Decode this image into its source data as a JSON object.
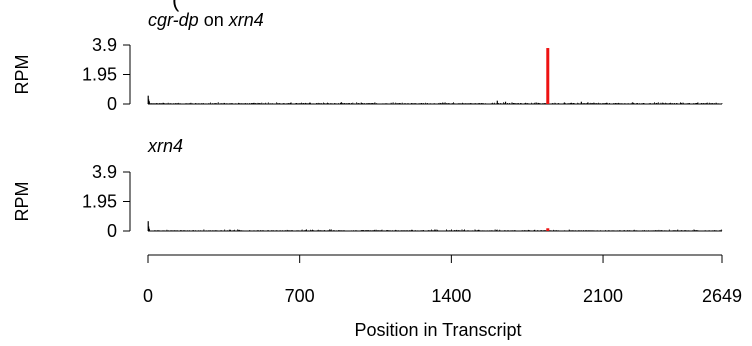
{
  "chart_data": {
    "type": "bar",
    "x_axis": {
      "label": "Position in Transcript",
      "range": [
        0,
        2649
      ],
      "ticks": [
        0,
        700,
        1400,
        2100,
        2649
      ],
      "tick_labels": [
        "0",
        "700",
        "1400",
        "2100",
        "2649"
      ]
    },
    "panels": [
      {
        "title_parts": [
          {
            "text": "cgr-dp",
            "italic": true
          },
          {
            "text": " on ",
            "italic": false
          },
          {
            "text": "xrn4",
            "italic": true
          }
        ],
        "ylabel": "RPM",
        "ylim": [
          0,
          3.9
        ],
        "yticks": [
          0,
          1.95,
          3.9
        ],
        "ytick_labels": [
          "0",
          "1.95",
          "3.9"
        ],
        "highlight": {
          "position": 1845,
          "value": 3.7,
          "color": "#ee1111"
        },
        "noise_peaks": [
          {
            "position": 1,
            "value": 0.55
          },
          {
            "position": 3,
            "value": 0.3
          },
          {
            "position": 6,
            "value": 0.18
          },
          {
            "position": 1612,
            "value": 0.22
          },
          {
            "position": 1650,
            "value": 0.15
          },
          {
            "position": 2000,
            "value": 0.15
          }
        ],
        "noise_level": 0.07
      },
      {
        "title_parts": [
          {
            "text": "xrn4",
            "italic": true
          }
        ],
        "ylabel": "RPM",
        "ylim": [
          0,
          3.9
        ],
        "yticks": [
          0,
          1.95,
          3.9
        ],
        "ytick_labels": [
          "0",
          "1.95",
          "3.9"
        ],
        "highlight": {
          "position": 1845,
          "value": 0.18,
          "color": "#ee1111"
        },
        "noise_peaks": [
          {
            "position": 1,
            "value": 0.65
          },
          {
            "position": 3,
            "value": 0.3
          },
          {
            "position": 6,
            "value": 0.15
          }
        ],
        "noise_level": 0.06
      }
    ],
    "line_color": "#000000",
    "grid": false
  },
  "top_fragment": {
    "text": "(",
    "color": "#ee1111"
  }
}
